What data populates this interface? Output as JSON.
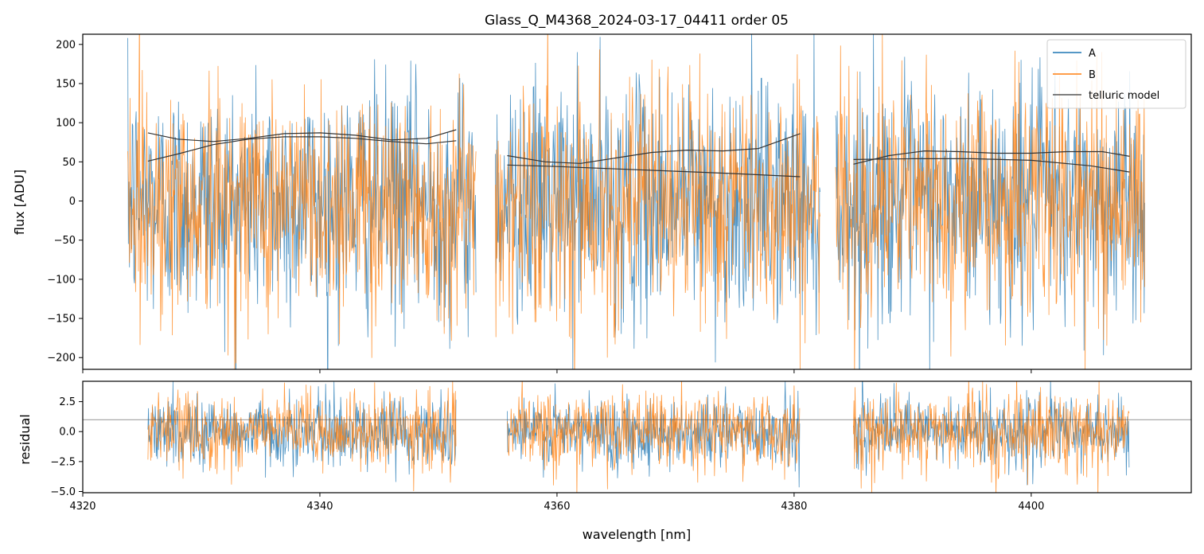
{
  "colors": {
    "A": "#1f77b4",
    "B": "#ff7f0e",
    "model": "#333333",
    "ref_line": "#555555"
  },
  "chart_data": [
    {
      "panel": "top",
      "type": "line",
      "title": "Glass_Q_M4368_2024-03-17_04411  order 05",
      "xlabel": "",
      "ylabel": "flux [ADU]",
      "xlim": [
        4320,
        4413.5
      ],
      "ylim": [
        -215,
        213
      ],
      "yticks": [
        200,
        150,
        100,
        50,
        0,
        -50,
        -100,
        -150,
        -200
      ],
      "xticks": [
        4320,
        4340,
        4360,
        4380,
        4400
      ],
      "show_xtick_labels": false,
      "grid": false,
      "legend": {
        "placement": "top-right",
        "entries": [
          "A",
          "B",
          "telluric model"
        ]
      },
      "segments": [
        [
          4323.8,
          4353.2
        ],
        [
          4354.8,
          4382.2
        ],
        [
          4383.5,
          4409.6
        ]
      ],
      "noise": {
        "A_sigma": 75,
        "B_sigma": 75
      },
      "series": [
        {
          "name": "telluric model",
          "curves": [
            {
              "x": [
                4325.5,
                4328,
                4331,
                4334,
                4337,
                4340,
                4343,
                4346,
                4349,
                4351.5
              ],
              "y": [
                87,
                79,
                76,
                80,
                86,
                87,
                84,
                78,
                80,
                91
              ]
            },
            {
              "x": [
                4325.5,
                4328,
                4331,
                4334,
                4337,
                4340,
                4343,
                4346,
                4349,
                4351.5
              ],
              "y": [
                51,
                60,
                72,
                79,
                82,
                82,
                80,
                76,
                73,
                77
              ]
            },
            {
              "x": [
                4355.8,
                4359,
                4362,
                4365,
                4368,
                4371,
                4374,
                4377,
                4380.5
              ],
              "y": [
                58,
                50,
                48,
                55,
                62,
                65,
                64,
                67,
                86
              ]
            },
            {
              "x": [
                4355.8,
                4360,
                4365,
                4370,
                4375,
                4380.5
              ],
              "y": [
                46,
                44,
                41,
                38,
                35,
                31
              ]
            },
            {
              "x": [
                4385,
                4388,
                4391,
                4394,
                4397,
                4400,
                4403,
                4406,
                4408.3
              ],
              "y": [
                47,
                58,
                64,
                63,
                61,
                61,
                63,
                63,
                57
              ]
            },
            {
              "x": [
                4385,
                4390,
                4395,
                4400,
                4405,
                4408.3
              ],
              "y": [
                53,
                54,
                54,
                52,
                45,
                37
              ]
            }
          ]
        },
        {
          "name": "A",
          "style": "noisy-line"
        },
        {
          "name": "B",
          "style": "noisy-line"
        }
      ]
    },
    {
      "panel": "bottom",
      "type": "line",
      "title": "",
      "xlabel": "wavelength [nm]",
      "ylabel": "residual",
      "xlim": [
        4320,
        4413.5
      ],
      "ylim": [
        -5.1,
        4.2
      ],
      "yticks": [
        2.5,
        0.0,
        -2.5,
        -5.0
      ],
      "ytick_labels": [
        "2.5",
        "0.0",
        "−2.5",
        "−5.0"
      ],
      "xticks": [
        4320,
        4340,
        4360,
        4380,
        4400
      ],
      "grid": false,
      "reference_line": 1.0,
      "segments": [
        [
          4325.5,
          4351.5
        ],
        [
          4355.8,
          4380.5
        ],
        [
          4385,
          4408.3
        ]
      ],
      "noise": {
        "A_sigma": 1.45,
        "B_sigma": 1.6
      },
      "series": [
        {
          "name": "A",
          "style": "noisy-line"
        },
        {
          "name": "B",
          "style": "noisy-line"
        }
      ]
    }
  ],
  "ytick_labels_top": [
    "200",
    "150",
    "100",
    "50",
    "0",
    "−50",
    "−100",
    "−150",
    "−200"
  ],
  "xtick_labels": [
    "4320",
    "4340",
    "4360",
    "4380",
    "4400"
  ]
}
